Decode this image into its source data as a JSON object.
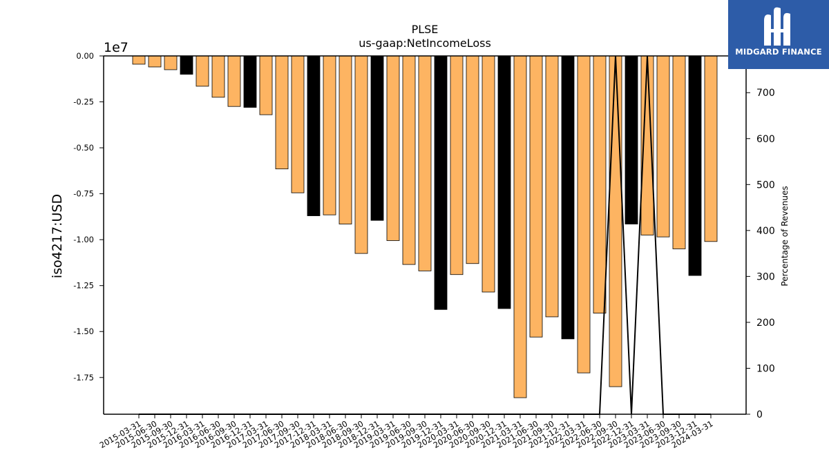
{
  "brand": {
    "name": "MIDGARD FINANCE",
    "logo_icon": "midgard-m-logo-icon",
    "background": "#2d5ca8"
  },
  "chart_data": {
    "type": "bar",
    "title": "PLSE",
    "subtitle": "us-gaap:NetIncomeLoss",
    "ylabel": "iso4217:USD",
    "y_scale_label": "1e7",
    "y2label": "Percentage of Revenues",
    "ylim": [
      -1.95,
      0
    ],
    "y_ticks": [
      "0.00",
      "-0.25",
      "-0.50",
      "-0.75",
      "-1.00",
      "-1.25",
      "-1.50",
      "-1.75"
    ],
    "y2lim": [
      0,
      780
    ],
    "y2_ticks": [
      "0",
      "100",
      "200",
      "300",
      "400",
      "500",
      "600",
      "700"
    ],
    "bar_colors": {
      "quarter": "#fdb462",
      "fiscal_year": "#000000"
    },
    "categories": [
      "2015-03-31",
      "2015-06-30",
      "2015-09-30",
      "2015-12-31",
      "2016-03-31",
      "2016-06-30",
      "2016-09-30",
      "2016-12-31",
      "2017-03-31",
      "2017-06-30",
      "2017-09-30",
      "2017-12-31",
      "2018-03-31",
      "2018-06-30",
      "2018-09-30",
      "2018-12-31",
      "2019-03-31",
      "2019-06-30",
      "2019-09-30",
      "2019-12-31",
      "2020-03-31",
      "2020-06-30",
      "2020-09-30",
      "2020-12-31",
      "2021-03-31",
      "2021-06-30",
      "2021-09-30",
      "2021-12-31",
      "2022-03-31",
      "2022-06-30",
      "2022-09-30",
      "2022-12-31",
      "2023-03-31",
      "2023-06-30",
      "2023-09-30",
      "2023-12-31",
      "2024-03-31"
    ],
    "series": [
      {
        "values": [
          -0.045,
          -0.06,
          -0.075,
          -0.1,
          -0.165,
          -0.225,
          -0.275,
          -0.28,
          -0.32,
          -0.615,
          -0.745,
          -0.87,
          -0.865,
          -0.915,
          -1.075,
          -0.895,
          -1.005,
          -1.135,
          -1.17,
          -1.38,
          -1.19,
          -1.13,
          -1.285,
          -1.375,
          -1.86,
          -1.53,
          -1.42,
          -1.54,
          -1.725,
          -1.4,
          -1.8,
          -0.915,
          -0.975,
          -0.985,
          -1.05,
          -1.195,
          -1.01
        ],
        "kinds": [
          "q",
          "q",
          "q",
          "fy",
          "q",
          "q",
          "q",
          "fy",
          "q",
          "q",
          "q",
          "fy",
          "q",
          "q",
          "q",
          "fy",
          "q",
          "q",
          "q",
          "fy",
          "q",
          "q",
          "q",
          "fy",
          "q",
          "q",
          "q",
          "fy",
          "q",
          "q",
          "q",
          "fy",
          "q",
          "q",
          "q",
          "fy",
          "q"
        ]
      },
      {
        "values": [
          0,
          0,
          0,
          0,
          0,
          0,
          0,
          0,
          0,
          0,
          0,
          0,
          0,
          0,
          0,
          0,
          0,
          0,
          0,
          0,
          0,
          0,
          0,
          0,
          0,
          0,
          0,
          0,
          0,
          0,
          780,
          0,
          780,
          0,
          0,
          0,
          0
        ]
      }
    ],
    "grid": false,
    "legend": "none"
  }
}
